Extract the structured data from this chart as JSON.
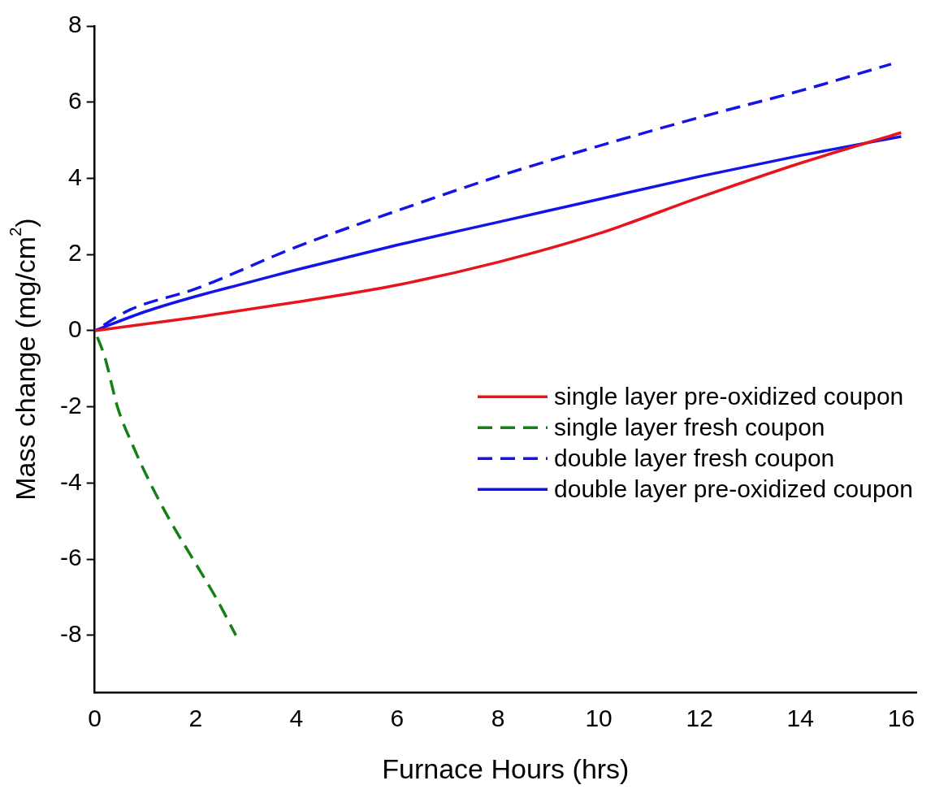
{
  "chart_data": {
    "type": "line",
    "xlabel": "Furnace Hours (hrs)",
    "ylabel": "Mass change (mg/cm$^{2}$)",
    "xlim": [
      0,
      16.3
    ],
    "ylim": [
      -9.5,
      8
    ],
    "xticks": [
      0,
      2,
      4,
      6,
      8,
      10,
      12,
      14,
      16
    ],
    "yticks": [
      -8,
      -6,
      -4,
      -2,
      0,
      2,
      4,
      6,
      8
    ],
    "grid": false,
    "legend": "right",
    "marker": "none",
    "series": [
      {
        "name": "single layer pre-oxidized coupon",
        "color": "#e8141c",
        "line_style": "solid",
        "x": [
          0,
          2,
          4,
          6,
          8,
          10,
          12,
          14,
          16
        ],
        "values": [
          0,
          0.35,
          0.75,
          1.2,
          1.8,
          2.55,
          3.5,
          4.4,
          5.2
        ]
      },
      {
        "name": "single layer fresh coupon",
        "color": "#158014",
        "line_style": "dashed",
        "x": [
          0,
          0.2,
          0.45,
          0.75,
          1.1,
          1.5,
          1.95,
          2.4,
          2.8
        ],
        "values": [
          0,
          -0.7,
          -2,
          -3,
          -4,
          -5,
          -6,
          -7,
          -8
        ]
      },
      {
        "name": "double layer fresh coupon",
        "color": "#1414e8",
        "line_style": "dashed",
        "x": [
          0,
          0.7,
          2,
          4,
          6,
          8,
          10,
          12,
          14,
          15.8
        ],
        "values": [
          0,
          0.55,
          1.1,
          2.2,
          3.15,
          4.05,
          4.85,
          5.6,
          6.3,
          7.0
        ]
      },
      {
        "name": "double layer pre-oxidized coupon",
        "color": "#1414e8",
        "line_style": "solid",
        "x": [
          0,
          1,
          2,
          3,
          4,
          6,
          8,
          10,
          12,
          14,
          16
        ],
        "values": [
          0,
          0.5,
          0.9,
          1.25,
          1.6,
          2.25,
          2.85,
          3.45,
          4.05,
          4.6,
          5.1
        ]
      }
    ]
  }
}
